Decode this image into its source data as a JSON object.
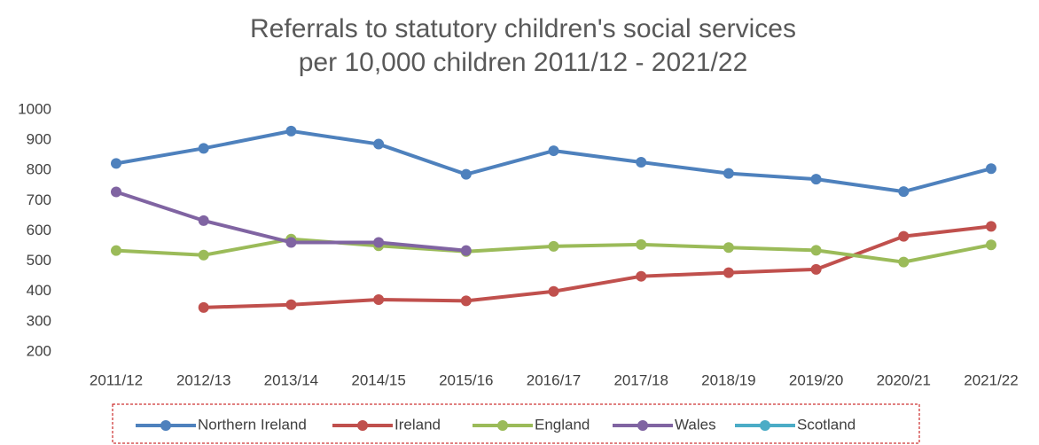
{
  "chart_data": {
    "type": "line",
    "title": [
      "Referrals to statutory children's social services",
      "per 10,000 children 2011/12 - 2021/22"
    ],
    "categories": [
      "2011/12",
      "2012/13",
      "2013/14",
      "2014/15",
      "2015/16",
      "2016/17",
      "2017/18",
      "2018/19",
      "2019/20",
      "2020/21",
      "2021/22"
    ],
    "series": [
      {
        "name": "Northern Ireland",
        "color": "#4e81bd",
        "values": [
          823,
          873,
          930,
          887,
          787,
          865,
          827,
          790,
          771,
          730,
          806
        ]
      },
      {
        "name": "Ireland",
        "color": "#c0504d",
        "values": [
          null,
          347,
          356,
          373,
          369,
          400,
          450,
          462,
          473,
          582,
          615
        ]
      },
      {
        "name": "England",
        "color": "#9bbb59",
        "values": [
          535,
          520,
          573,
          551,
          532,
          549,
          555,
          545,
          536,
          497,
          554
        ]
      },
      {
        "name": "Wales",
        "color": "#8064a2",
        "values": [
          729,
          634,
          562,
          562,
          535,
          null,
          null,
          null,
          null,
          null,
          null
        ]
      },
      {
        "name": "Scotland",
        "color": "#4bacc6",
        "values": [
          null,
          null,
          null,
          null,
          null,
          null,
          null,
          null,
          null,
          null,
          null
        ]
      }
    ],
    "ylim": [
      200,
      1000
    ],
    "yticks": [
      200,
      300,
      400,
      500,
      600,
      700,
      800,
      900,
      1000
    ],
    "grid": false,
    "legend": "bottom"
  }
}
